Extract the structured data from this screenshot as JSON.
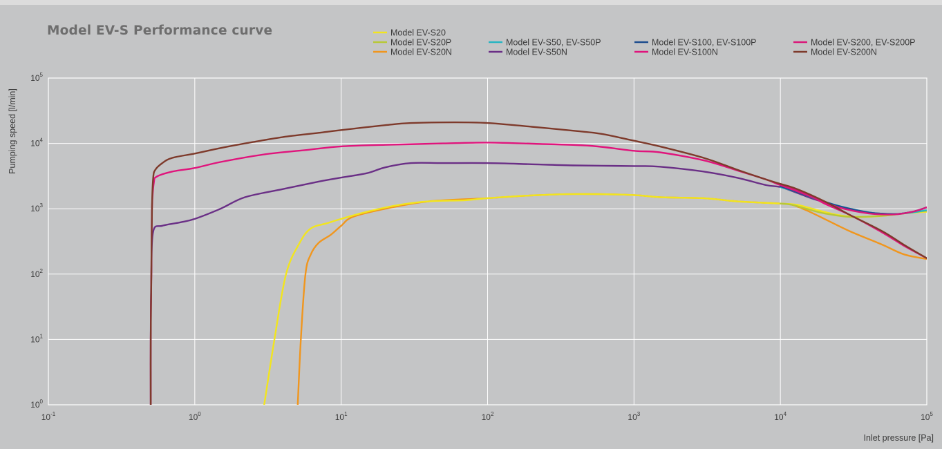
{
  "title": "Model EV-S Performance curve",
  "chart_data": {
    "type": "line",
    "title": "Model EV-S Performance curve",
    "xlabel": "Inlet pressure [Pa]",
    "ylabel": "Pumping speed [l/min]",
    "x_scale": "log",
    "y_scale": "log",
    "xlim": [
      0.1,
      100000
    ],
    "ylim": [
      1,
      100000
    ],
    "grid": true,
    "legend_position": "top",
    "x_ticks": [
      {
        "value": 0.1,
        "base": "10",
        "exp": "-1"
      },
      {
        "value": 1,
        "base": "10",
        "exp": "0"
      },
      {
        "value": 10,
        "base": "10",
        "exp": "1"
      },
      {
        "value": 100,
        "base": "10",
        "exp": "2"
      },
      {
        "value": 1000,
        "base": "10",
        "exp": "3"
      },
      {
        "value": 10000,
        "base": "10",
        "exp": "4"
      },
      {
        "value": 100000,
        "base": "10",
        "exp": "5"
      }
    ],
    "y_ticks": [
      {
        "value": 1,
        "base": "10",
        "exp": "0"
      },
      {
        "value": 10,
        "base": "10",
        "exp": "1"
      },
      {
        "value": 100,
        "base": "10",
        "exp": "2"
      },
      {
        "value": 1000,
        "base": "10",
        "exp": "3"
      },
      {
        "value": 10000,
        "base": "10",
        "exp": "4"
      },
      {
        "value": 100000,
        "base": "10",
        "exp": "5"
      }
    ],
    "series": [
      {
        "name": "Model EV-S20",
        "color": "#f2e51e",
        "points": [
          [
            2.98,
            1
          ],
          [
            3.5,
            10
          ],
          [
            4.2,
            100
          ],
          [
            5.2,
            300
          ],
          [
            6.2,
            500
          ],
          [
            8,
            600
          ],
          [
            10,
            700
          ],
          [
            15,
            900
          ],
          [
            25,
            1150
          ],
          [
            40,
            1300
          ],
          [
            70,
            1350
          ],
          [
            100,
            1450
          ],
          [
            200,
            1600
          ],
          [
            400,
            1680
          ],
          [
            1000,
            1620
          ],
          [
            1500,
            1500
          ],
          [
            3000,
            1450
          ],
          [
            5000,
            1300
          ],
          [
            10000,
            1200
          ],
          [
            13000,
            1150
          ],
          [
            18000,
            950
          ],
          [
            25000,
            800
          ],
          [
            35000,
            750
          ],
          [
            50000,
            780
          ],
          [
            70000,
            850
          ],
          [
            100000,
            900
          ]
        ]
      },
      {
        "name": "Model EV-S20P",
        "color": "#b8c837",
        "points": [
          [
            10000,
            1200
          ],
          [
            12000,
            1150
          ],
          [
            15000,
            1000
          ],
          [
            20000,
            850
          ],
          [
            30000,
            750
          ],
          [
            50000,
            780
          ],
          [
            70000,
            850
          ],
          [
            100000,
            930
          ]
        ]
      },
      {
        "name": "Model EV-S20N",
        "color": "#f0961e",
        "points": [
          [
            5.05,
            1
          ],
          [
            5.3,
            10
          ],
          [
            5.7,
            100
          ],
          [
            6.2,
            200
          ],
          [
            7,
            300
          ],
          [
            8.5,
            400
          ],
          [
            10,
            550
          ],
          [
            12,
            750
          ],
          [
            20,
            1000
          ],
          [
            40,
            1300
          ],
          [
            100,
            1450
          ],
          [
            200,
            1600
          ],
          [
            400,
            1680
          ],
          [
            1000,
            1620
          ],
          [
            1500,
            1500
          ],
          [
            3000,
            1450
          ],
          [
            5000,
            1300
          ],
          [
            10000,
            1200
          ],
          [
            12000,
            1150
          ],
          [
            15000,
            950
          ],
          [
            20000,
            700
          ],
          [
            30000,
            450
          ],
          [
            50000,
            280
          ],
          [
            70000,
            200
          ],
          [
            100000,
            170
          ]
        ]
      },
      {
        "name": "Model EV-S50, EV-S50P",
        "color": "#28b5c2",
        "points": [
          [
            10000,
            2150
          ],
          [
            13000,
            1800
          ],
          [
            17000,
            1450
          ],
          [
            22000,
            1200
          ],
          [
            30000,
            1000
          ],
          [
            45000,
            850
          ],
          [
            60000,
            830
          ],
          [
            80000,
            880
          ],
          [
            100000,
            950
          ]
        ]
      },
      {
        "name": "Model EV-S50N",
        "color": "#6a2f86",
        "points": [
          [
            0.5,
            1
          ],
          [
            0.5,
            10
          ],
          [
            0.505,
            100
          ],
          [
            0.52,
            450
          ],
          [
            0.6,
            550
          ],
          [
            0.8,
            620
          ],
          [
            1,
            700
          ],
          [
            1.5,
            1000
          ],
          [
            2.2,
            1500
          ],
          [
            4,
            2000
          ],
          [
            7,
            2600
          ],
          [
            10,
            3000
          ],
          [
            15,
            3500
          ],
          [
            20,
            4300
          ],
          [
            30,
            5000
          ],
          [
            50,
            5000
          ],
          [
            100,
            5000
          ],
          [
            200,
            4800
          ],
          [
            400,
            4600
          ],
          [
            1000,
            4500
          ],
          [
            1500,
            4400
          ],
          [
            3000,
            3700
          ],
          [
            5000,
            3000
          ],
          [
            8000,
            2300
          ],
          [
            10000,
            2150
          ],
          [
            13000,
            1750
          ],
          [
            17000,
            1400
          ],
          [
            25000,
            1100
          ],
          [
            40000,
            880
          ],
          [
            60000,
            830
          ],
          [
            80000,
            900
          ],
          [
            100000,
            1050
          ]
        ]
      },
      {
        "name": "Model EV-S100, EV-S100P",
        "color": "#1d4d8e",
        "points": [
          [
            10000,
            2200
          ],
          [
            13000,
            1800
          ],
          [
            18000,
            1400
          ],
          [
            25000,
            1100
          ],
          [
            40000,
            880
          ],
          [
            60000,
            830
          ],
          [
            80000,
            900
          ],
          [
            100000,
            1050
          ]
        ]
      },
      {
        "name": "Model EV-S100N",
        "color": "#e0147c",
        "points": [
          [
            0.5,
            1
          ],
          [
            0.5,
            10
          ],
          [
            0.505,
            100
          ],
          [
            0.51,
            1000
          ],
          [
            0.525,
            2500
          ],
          [
            0.55,
            3100
          ],
          [
            0.7,
            3700
          ],
          [
            1,
            4200
          ],
          [
            1.5,
            5200
          ],
          [
            3,
            6800
          ],
          [
            6,
            8000
          ],
          [
            10,
            9000
          ],
          [
            20,
            9500
          ],
          [
            50,
            10000
          ],
          [
            100,
            10300
          ],
          [
            200,
            9900
          ],
          [
            500,
            9200
          ],
          [
            1000,
            7700
          ],
          [
            1500,
            7300
          ],
          [
            3000,
            5500
          ],
          [
            5000,
            3900
          ],
          [
            8000,
            2800
          ],
          [
            10000,
            2300
          ],
          [
            15000,
            1700
          ],
          [
            20000,
            1200
          ],
          [
            30000,
            800
          ],
          [
            50000,
            430
          ],
          [
            70000,
            270
          ],
          [
            100000,
            175
          ]
        ]
      },
      {
        "name": "Model EV-S200, EV-S200P",
        "color": "#d9187a",
        "points": [
          [
            10000,
            2300
          ],
          [
            13000,
            1850
          ],
          [
            18000,
            1400
          ],
          [
            25000,
            1050
          ],
          [
            40000,
            850
          ],
          [
            60000,
            820
          ],
          [
            80000,
            900
          ],
          [
            100000,
            1050
          ]
        ]
      },
      {
        "name": "Model EV-S200N",
        "color": "#7e3a2b",
        "points": [
          [
            0.5,
            1
          ],
          [
            0.5,
            10
          ],
          [
            0.505,
            100
          ],
          [
            0.51,
            1000
          ],
          [
            0.52,
            3000
          ],
          [
            0.54,
            4000
          ],
          [
            0.6,
            5000
          ],
          [
            0.7,
            6000
          ],
          [
            1,
            7000
          ],
          [
            1.5,
            8500
          ],
          [
            2.5,
            10500
          ],
          [
            4,
            12500
          ],
          [
            7,
            14500
          ],
          [
            10,
            16000
          ],
          [
            20,
            19000
          ],
          [
            30,
            20500
          ],
          [
            60,
            21000
          ],
          [
            100,
            20500
          ],
          [
            200,
            18000
          ],
          [
            400,
            15500
          ],
          [
            600,
            14000
          ],
          [
            1000,
            11000
          ],
          [
            1500,
            9000
          ],
          [
            3000,
            6000
          ],
          [
            5000,
            4000
          ],
          [
            8000,
            2800
          ],
          [
            10000,
            2400
          ],
          [
            13000,
            2000
          ],
          [
            20000,
            1300
          ],
          [
            30000,
            800
          ],
          [
            50000,
            450
          ],
          [
            70000,
            280
          ],
          [
            100000,
            175
          ]
        ]
      }
    ]
  },
  "legend": {
    "rows": [
      [
        {
          "series": 0
        }
      ],
      [
        {
          "series": 1
        },
        {
          "series": 3
        },
        {
          "series": 5
        },
        {
          "series": 7
        }
      ],
      [
        {
          "series": 2
        },
        {
          "series": 4
        },
        {
          "series": 6
        },
        {
          "series": 8
        }
      ]
    ]
  }
}
